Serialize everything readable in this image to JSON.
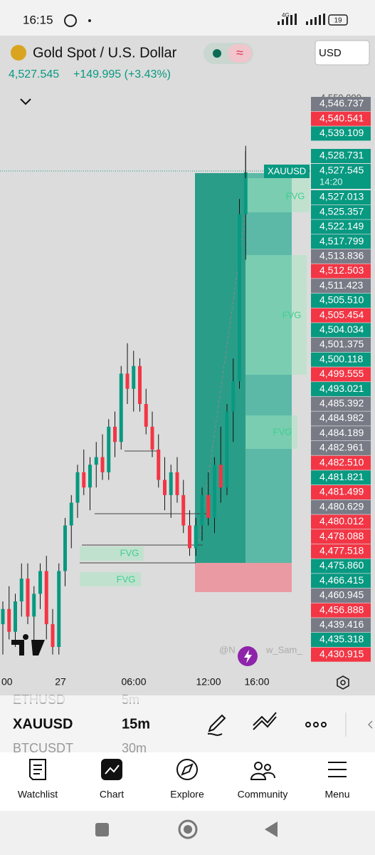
{
  "status_bar": {
    "time": "16:15",
    "network": "4G",
    "battery": "19"
  },
  "header": {
    "symbol_name": "Gold Spot / U.S. Dollar",
    "currency": "USD",
    "price": "4,527.545",
    "change": "+149.995 (+3.43%)"
  },
  "chart_data": {
    "type": "candlestick",
    "open": [
      4468,
      4470,
      4467,
      4471,
      4474,
      4469,
      4472,
      4475,
      4468,
      4465,
      4475,
      4481,
      4484,
      4488,
      4486,
      4489,
      4490,
      4488,
      4494,
      4492,
      4501,
      4499,
      4502,
      4497,
      4494,
      4491,
      4487,
      4485,
      4488,
      4485,
      4481,
      4478,
      4481,
      4485,
      4482,
      4489,
      4486,
      4496,
      4500,
      4522
    ],
    "high": [
      4471,
      4473,
      4472,
      4476,
      4476,
      4473,
      4476,
      4477,
      4470,
      4476,
      4482,
      4485,
      4489,
      4491,
      4490,
      4492,
      4493,
      4495,
      4496,
      4502,
      4505,
      4504,
      4503,
      4499,
      4496,
      4493,
      4490,
      4489,
      4490,
      4487,
      4483,
      4482,
      4486,
      4488,
      4490,
      4494,
      4497,
      4503,
      4524,
      4531
    ],
    "low": [
      4464,
      4466,
      4465,
      4469,
      4468,
      4464,
      4470,
      4466,
      4464,
      4464,
      4473,
      4478,
      4482,
      4485,
      4483,
      4486,
      4487,
      4487,
      4490,
      4491,
      4497,
      4496,
      4496,
      4493,
      4490,
      4486,
      4483,
      4482,
      4484,
      4480,
      4477,
      4477,
      4479,
      4481,
      4480,
      4484,
      4485,
      4492,
      4499,
      4516
    ],
    "close": [
      4470,
      4467,
      4471,
      4474,
      4469,
      4472,
      4475,
      4468,
      4465,
      4475,
      4481,
      4484,
      4488,
      4486,
      4489,
      4490,
      4488,
      4494,
      4492,
      4501,
      4499,
      4502,
      4497,
      4494,
      4491,
      4487,
      4485,
      4488,
      4485,
      4481,
      4478,
      4481,
      4485,
      4482,
      4489,
      4486,
      4496,
      4500,
      4522,
      4527.5
    ],
    "ylim": [
      4462,
      4538
    ],
    "up_color": "#089981",
    "down_color": "#f23645",
    "time_labels": [
      "00",
      "27",
      "06:00",
      "12:00",
      "16:00"
    ],
    "price_axis_top": "4,550.000",
    "price_tags_upper": [
      {
        "text": "4,546.737",
        "color": "#787b86"
      },
      {
        "text": "4,540.541",
        "color": "#f23645"
      },
      {
        "text": "4,539.109",
        "color": "#089981"
      }
    ],
    "price_tags": [
      {
        "text": "4,528.731",
        "color": "#089981"
      },
      {
        "text": "4,527.545",
        "color": "#089981"
      },
      {
        "text": "4,527.013",
        "color": "#089981"
      },
      {
        "text": "4,525.357",
        "color": "#089981"
      },
      {
        "text": "4,522.149",
        "color": "#089981"
      },
      {
        "text": "4,517.799",
        "color": "#089981"
      },
      {
        "text": "4,513.836",
        "color": "#787b86"
      },
      {
        "text": "4,512.503",
        "color": "#f23645"
      },
      {
        "text": "4,511.423",
        "color": "#787b86"
      },
      {
        "text": "4,505.510",
        "color": "#089981"
      },
      {
        "text": "4,505.454",
        "color": "#f23645"
      },
      {
        "text": "4,504.034",
        "color": "#089981"
      },
      {
        "text": "4,501.375",
        "color": "#787b86"
      },
      {
        "text": "4,500.118",
        "color": "#089981"
      },
      {
        "text": "4,499.555",
        "color": "#f23645"
      },
      {
        "text": "4,493.021",
        "color": "#089981"
      },
      {
        "text": "4,485.392",
        "color": "#787b86"
      },
      {
        "text": "4,484.982",
        "color": "#787b86"
      },
      {
        "text": "4,484.189",
        "color": "#787b86"
      },
      {
        "text": "4,482.961",
        "color": "#787b86"
      },
      {
        "text": "4,482.510",
        "color": "#f23645"
      },
      {
        "text": "4,481.821",
        "color": "#089981"
      },
      {
        "text": "4,481.499",
        "color": "#f23645"
      },
      {
        "text": "4,480.629",
        "color": "#787b86"
      },
      {
        "text": "4,480.012",
        "color": "#f23645"
      },
      {
        "text": "4,478.088",
        "color": "#f23645"
      },
      {
        "text": "4,477.518",
        "color": "#f23645"
      },
      {
        "text": "4,475.860",
        "color": "#089981"
      },
      {
        "text": "4,466.415",
        "color": "#089981"
      },
      {
        "text": "4,460.945",
        "color": "#787b86"
      },
      {
        "text": "4,456.888",
        "color": "#f23645"
      },
      {
        "text": "4,439.416",
        "color": "#787b86"
      },
      {
        "text": "4,435.318",
        "color": "#089981"
      },
      {
        "text": "4,430.915",
        "color": "#f23645"
      }
    ],
    "symbol_tag": "XAUUSD",
    "countdown": "14:20",
    "annotations": [
      "FVG",
      "FVG",
      "FVG",
      "FVG",
      "FVG"
    ],
    "watermark": [
      "@N",
      "w_Sam_"
    ]
  },
  "toolbar": {
    "rows": [
      {
        "symbol": "ETHUSD",
        "interval": "5m"
      },
      {
        "symbol": "XAUUSD",
        "interval": "15m"
      },
      {
        "symbol": "BTCUSDT",
        "interval": "30m"
      }
    ]
  },
  "nav": [
    "Watchlist",
    "Chart",
    "Explore",
    "Community",
    "Menu"
  ]
}
